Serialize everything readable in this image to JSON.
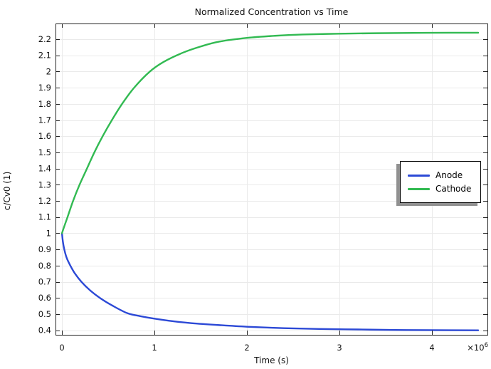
{
  "window": {
    "background": "#ffffff"
  },
  "chart_data": {
    "type": "line",
    "title": "Normalized Concentration vs Time",
    "xlabel": "Time (s)",
    "ylabel": "c/Cv0 (1)",
    "x_multiplier": {
      "text": "×10",
      "exponent": "6"
    },
    "xlim": [
      -70000,
      4600000
    ],
    "ylim": [
      0.372,
      2.297
    ],
    "grid": true,
    "legend_position": "right-middle",
    "x_ticks": {
      "values": [
        0,
        1000000,
        2000000,
        3000000,
        4000000
      ],
      "labels": [
        "0",
        "1",
        "2",
        "3",
        "4"
      ]
    },
    "y_ticks": {
      "values": [
        2.2,
        2.1,
        2.0,
        1.9,
        1.8,
        1.7,
        1.6,
        1.5,
        1.4,
        1.3,
        1.2,
        1.1,
        1.0,
        0.9,
        0.8,
        0.7,
        0.6,
        0.5,
        0.4
      ],
      "labels": [
        "2.2",
        "2.1",
        "2",
        "1.9",
        "1.8",
        "1.7",
        "1.6",
        "1.5",
        "1.4",
        "1.3",
        "1.2",
        "1.1",
        "1",
        "0.9",
        "0.8",
        "0.7",
        "0.6",
        "0.5",
        "0.4"
      ]
    },
    "colors": {
      "grid": "#eaeaea",
      "axis": "#222222",
      "text": "#111111",
      "legend_shadow": "#909090"
    },
    "series": [
      {
        "name": "Anode",
        "color": "#2c49d6",
        "points": [
          [
            0,
            1.0
          ],
          [
            10000,
            0.947
          ],
          [
            25000,
            0.9
          ],
          [
            50000,
            0.849
          ],
          [
            90000,
            0.8
          ],
          [
            140000,
            0.751
          ],
          [
            210000,
            0.7
          ],
          [
            300000,
            0.649
          ],
          [
            410000,
            0.6
          ],
          [
            550000,
            0.551
          ],
          [
            710000,
            0.505
          ],
          [
            850000,
            0.487
          ],
          [
            1000000,
            0.472
          ],
          [
            1200000,
            0.456
          ],
          [
            1400000,
            0.444
          ],
          [
            1700000,
            0.432
          ],
          [
            2000000,
            0.422
          ],
          [
            2400000,
            0.413
          ],
          [
            2800000,
            0.408
          ],
          [
            3200000,
            0.405
          ],
          [
            3600000,
            0.402
          ],
          [
            4000000,
            0.401
          ],
          [
            4500000,
            0.4
          ]
        ]
      },
      {
        "name": "Cathode",
        "color": "#32ba52",
        "points": [
          [
            0,
            1.0
          ],
          [
            20000,
            1.035
          ],
          [
            60000,
            1.1
          ],
          [
            120000,
            1.2
          ],
          [
            190000,
            1.3
          ],
          [
            270000,
            1.4
          ],
          [
            350000,
            1.5
          ],
          [
            440000,
            1.6
          ],
          [
            540000,
            1.7
          ],
          [
            650000,
            1.8
          ],
          [
            780000,
            1.9
          ],
          [
            950000,
            2.0
          ],
          [
            1100000,
            2.06
          ],
          [
            1300000,
            2.115
          ],
          [
            1500000,
            2.155
          ],
          [
            1700000,
            2.185
          ],
          [
            2000000,
            2.208
          ],
          [
            2300000,
            2.221
          ],
          [
            2600000,
            2.229
          ],
          [
            3000000,
            2.234
          ],
          [
            3400000,
            2.237
          ],
          [
            3800000,
            2.239
          ],
          [
            4200000,
            2.24
          ],
          [
            4500000,
            2.24
          ]
        ]
      }
    ]
  }
}
